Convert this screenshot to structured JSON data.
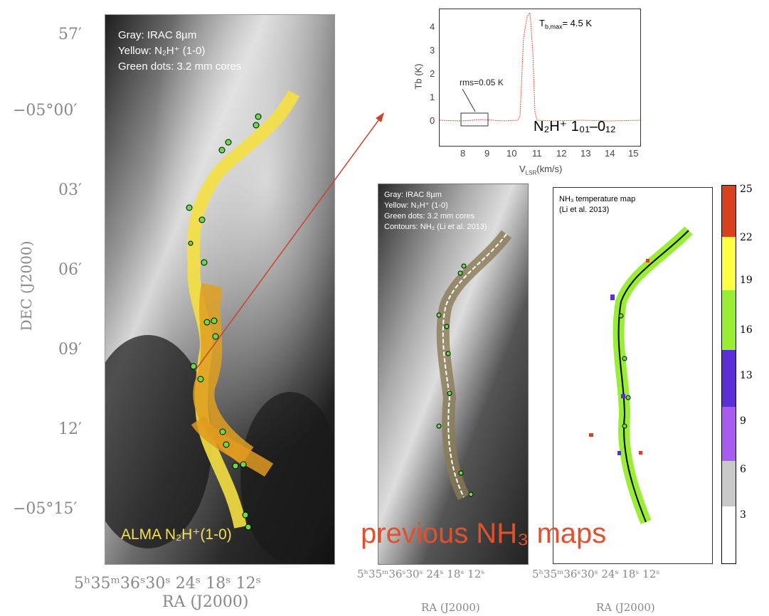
{
  "main_panel": {
    "legend": [
      "Gray: IRAC 8µm",
      "Yellow: N₂H⁺  (1-0)",
      "Green dots: 3.2 mm cores"
    ],
    "label": "ALMA N₂H⁺(1-0)",
    "dec_ticks": [
      "57′",
      "−05°00′",
      "03′",
      "06′",
      "09′",
      "12′",
      "−05°15′"
    ],
    "ra_ticks": "5ʰ35ᵐ36ˢ30ˢ 24ˢ 18ˢ 12ˢ",
    "ylabel": "DEC (J2000)",
    "xlabel": "RA (J2000)"
  },
  "spectrum": {
    "ylabel": "Tb (K)",
    "xlabel": "V",
    "xlabel_sub": "LSR",
    "xlabel_unit": "(km/s)",
    "y_ticks": [
      "4",
      "3",
      "2",
      "1",
      "0"
    ],
    "x_ticks": [
      "8",
      "9",
      "10",
      "11",
      "12",
      "13",
      "14",
      "15"
    ],
    "annotation_rms": "rms=0.05 K",
    "annotation_tmax": "T",
    "annotation_tmax_sub": "b,max",
    "annotation_tmax_val": "= 4.5 K",
    "line_label": "N₂H⁺ 1₀₁–0₁₂"
  },
  "middle_panel": {
    "legend": [
      "Gray: IRAC 8µm",
      "Yellow: N₂H⁺  (1-0)",
      "Green dots: 3.2 mm cores",
      "Contours: NH₃  (Li et al. 2013)"
    ],
    "ra_ticks": "5ʰ35ᵐ36ˢ30ˢ 24ˢ 18ˢ 12ˢ",
    "xlabel": "RA (J2000)"
  },
  "right_panel": {
    "title": "NH₃  temperature map",
    "subtitle": "(Li et al. 2013)",
    "ra_ticks": "5ʰ35ᵐ36ˢ30ˢ 24ˢ 18ˢ 12ˢ",
    "xlabel": "RA (J2000)"
  },
  "colorbar": {
    "labels": [
      "25",
      "22",
      "19",
      "16",
      "13",
      "9",
      "6",
      "3"
    ],
    "colors": [
      "#d9411e",
      "#ffff44",
      "#99ee33",
      "#5a2fd6",
      "#a85bf0",
      "#c8c8c8",
      "#ffffff"
    ]
  },
  "overlay_text": "previous NH₃ maps"
}
